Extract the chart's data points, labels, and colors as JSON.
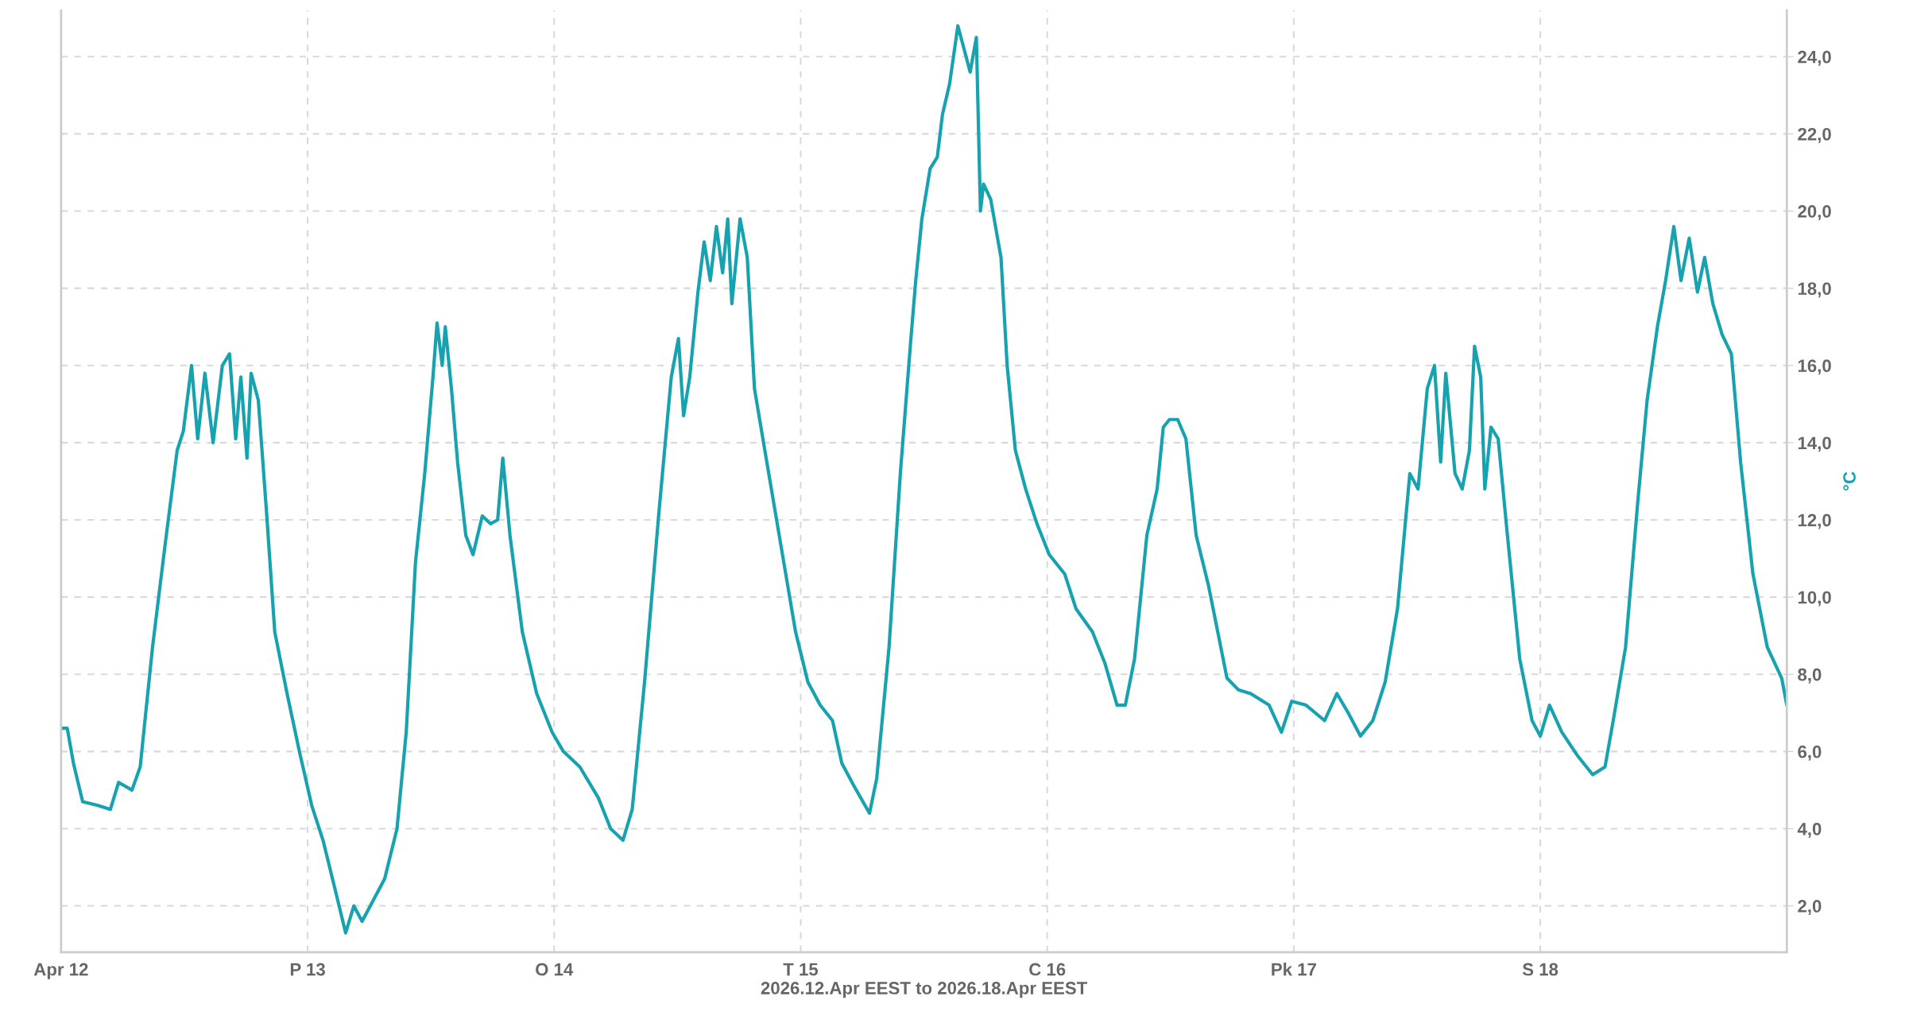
{
  "chart_data": {
    "type": "line",
    "xlabel": "2026.12.Apr EEST to 2026.18.Apr EEST",
    "ylabel": "°C",
    "xlim": [
      "2026-04-12",
      "2026-04-19"
    ],
    "xticks": [
      {
        "value": "2026-04-12",
        "label": "Apr 12"
      },
      {
        "value": "2026-04-13",
        "label": "P 13"
      },
      {
        "value": "2026-04-14",
        "label": "O 14"
      },
      {
        "value": "2026-04-15",
        "label": "T 15"
      },
      {
        "value": "2026-04-16",
        "label": "C 16"
      },
      {
        "value": "2026-04-17",
        "label": "Pk 17"
      },
      {
        "value": "2026-04-18",
        "label": "S 18"
      }
    ],
    "ylim": [
      0.8,
      25.2
    ],
    "yticks": [
      {
        "value": 2,
        "label": "2,0"
      },
      {
        "value": 4,
        "label": "4,0"
      },
      {
        "value": 6,
        "label": "6,0"
      },
      {
        "value": 8,
        "label": "8,0"
      },
      {
        "value": 10,
        "label": "10,0"
      },
      {
        "value": 12,
        "label": "12,0"
      },
      {
        "value": 14,
        "label": "14,0"
      },
      {
        "value": 16,
        "label": "16,0"
      },
      {
        "value": 18,
        "label": "18,0"
      },
      {
        "value": 20,
        "label": "20,0"
      },
      {
        "value": 22,
        "label": "22,0"
      },
      {
        "value": 24,
        "label": "24,0"
      }
    ],
    "grid": true,
    "legend": false,
    "marker": "none",
    "line_style": "solid",
    "series": [
      {
        "color": "#17a2b0",
        "x": [
          "2026-04-12T00:00",
          "2026-04-12T00:36",
          "2026-04-12T01:12",
          "2026-04-12T02:06",
          "2026-04-12T03:36",
          "2026-04-12T04:48",
          "2026-04-12T05:36",
          "2026-04-12T06:54",
          "2026-04-12T07:42",
          "2026-04-12T08:54",
          "2026-04-12T10:06",
          "2026-04-12T11:18",
          "2026-04-12T11:54",
          "2026-04-12T12:42",
          "2026-04-12T13:18",
          "2026-04-12T14:00",
          "2026-04-12T14:48",
          "2026-04-12T15:42",
          "2026-04-12T16:24",
          "2026-04-12T17:00",
          "2026-04-12T17:30",
          "2026-04-12T18:06",
          "2026-04-12T18:30",
          "2026-04-12T19:12",
          "2026-04-12T20:00",
          "2026-04-12T20:48",
          "2026-04-12T22:00",
          "2026-04-12T23:12",
          "2026-04-13T00:24",
          "2026-04-13T01:30",
          "2026-04-13T02:42",
          "2026-04-13T03:42",
          "2026-04-13T04:30",
          "2026-04-13T05:18",
          "2026-04-13T06:18",
          "2026-04-13T07:30",
          "2026-04-13T08:42",
          "2026-04-13T09:36",
          "2026-04-13T10:30",
          "2026-04-13T11:24",
          "2026-04-13T12:12",
          "2026-04-13T12:36",
          "2026-04-13T13:06",
          "2026-04-13T13:24",
          "2026-04-13T14:00",
          "2026-04-13T14:36",
          "2026-04-13T15:24",
          "2026-04-13T16:06",
          "2026-04-13T17:00",
          "2026-04-13T17:48",
          "2026-04-13T18:30",
          "2026-04-13T19:00",
          "2026-04-13T19:42",
          "2026-04-13T20:54",
          "2026-04-13T22:18",
          "2026-04-13T23:48",
          "2026-04-14T00:54",
          "2026-04-14T02:30",
          "2026-04-14T04:18",
          "2026-04-14T05:30",
          "2026-04-14T06:42",
          "2026-04-14T07:36",
          "2026-04-14T08:48",
          "2026-04-14T10:12",
          "2026-04-14T11:24",
          "2026-04-14T12:06",
          "2026-04-14T12:36",
          "2026-04-14T13:12",
          "2026-04-14T14:00",
          "2026-04-14T14:36",
          "2026-04-14T15:12",
          "2026-04-14T15:48",
          "2026-04-14T16:24",
          "2026-04-14T16:54",
          "2026-04-14T17:18",
          "2026-04-14T18:06",
          "2026-04-14T18:48",
          "2026-04-14T19:30",
          "2026-04-14T20:42",
          "2026-04-14T22:06",
          "2026-04-14T23:30",
          "2026-04-15T00:42",
          "2026-04-15T01:54",
          "2026-04-15T03:06",
          "2026-04-15T04:00",
          "2026-04-15T05:12",
          "2026-04-15T06:42",
          "2026-04-15T07:24",
          "2026-04-15T08:36",
          "2026-04-15T09:42",
          "2026-04-15T10:42",
          "2026-04-15T11:12",
          "2026-04-15T11:48",
          "2026-04-15T12:36",
          "2026-04-15T13:18",
          "2026-04-15T13:48",
          "2026-04-15T14:30",
          "2026-04-15T15:18",
          "2026-04-15T15:54",
          "2026-04-15T16:30",
          "2026-04-15T17:06",
          "2026-04-15T17:30",
          "2026-04-15T17:48",
          "2026-04-15T18:30",
          "2026-04-15T19:30",
          "2026-04-15T20:06",
          "2026-04-15T20:54",
          "2026-04-15T21:54",
          "2026-04-15T23:00",
          "2026-04-16T00:12",
          "2026-04-16T01:42",
          "2026-04-16T02:48",
          "2026-04-16T04:24",
          "2026-04-16T05:36",
          "2026-04-16T06:48",
          "2026-04-16T07:36",
          "2026-04-16T08:30",
          "2026-04-16T09:42",
          "2026-04-16T10:42",
          "2026-04-16T11:18",
          "2026-04-16T11:54",
          "2026-04-16T12:42",
          "2026-04-16T13:30",
          "2026-04-16T14:30",
          "2026-04-16T15:42",
          "2026-04-16T16:36",
          "2026-04-16T17:30",
          "2026-04-16T18:36",
          "2026-04-16T19:48",
          "2026-04-16T21:36",
          "2026-04-16T22:48",
          "2026-04-16T23:48",
          "2026-04-17T01:12",
          "2026-04-17T03:00",
          "2026-04-17T04:12",
          "2026-04-17T05:18",
          "2026-04-17T06:30",
          "2026-04-17T07:42",
          "2026-04-17T08:54",
          "2026-04-17T10:06",
          "2026-04-17T11:18",
          "2026-04-17T12:06",
          "2026-04-17T13:00",
          "2026-04-17T13:42",
          "2026-04-17T14:18",
          "2026-04-17T14:48",
          "2026-04-17T15:42",
          "2026-04-17T16:24",
          "2026-04-17T17:06",
          "2026-04-17T17:36",
          "2026-04-17T18:12",
          "2026-04-17T18:36",
          "2026-04-17T19:12",
          "2026-04-17T19:54",
          "2026-04-17T20:48",
          "2026-04-17T22:00",
          "2026-04-17T23:12",
          "2026-04-18T00:00",
          "2026-04-18T00:54",
          "2026-04-18T02:06",
          "2026-04-18T03:36",
          "2026-04-18T05:06",
          "2026-04-18T06:18",
          "2026-04-18T07:06",
          "2026-04-18T08:18",
          "2026-04-18T09:30",
          "2026-04-18T10:24",
          "2026-04-18T11:24",
          "2026-04-18T12:12",
          "2026-04-18T13:00",
          "2026-04-18T13:42",
          "2026-04-18T14:30",
          "2026-04-18T15:18",
          "2026-04-18T16:00",
          "2026-04-18T16:48",
          "2026-04-18T17:42",
          "2026-04-18T18:36",
          "2026-04-18T19:30",
          "2026-04-18T20:42",
          "2026-04-18T22:06",
          "2026-04-18T23:30",
          "2026-04-19T00:00"
        ],
        "values": [
          6.6,
          6.6,
          5.7,
          4.7,
          4.6,
          4.5,
          5.2,
          5.0,
          5.6,
          8.7,
          11.3,
          13.8,
          14.3,
          16.0,
          14.1,
          15.8,
          14.0,
          16.0,
          16.3,
          14.1,
          15.7,
          13.6,
          15.8,
          15.1,
          12.2,
          9.1,
          7.5,
          6.0,
          4.6,
          3.7,
          2.4,
          1.3,
          2.0,
          1.6,
          2.1,
          2.7,
          4.0,
          6.5,
          10.9,
          13.2,
          15.7,
          17.1,
          16.0,
          17.0,
          15.4,
          13.5,
          11.6,
          11.1,
          12.1,
          11.9,
          12.0,
          13.6,
          11.6,
          9.1,
          7.5,
          6.5,
          6.0,
          5.6,
          4.8,
          4.0,
          3.7,
          4.5,
          7.8,
          12.2,
          15.7,
          16.7,
          14.7,
          15.7,
          17.9,
          19.2,
          18.2,
          19.6,
          18.4,
          19.8,
          17.6,
          19.8,
          18.8,
          15.4,
          13.5,
          11.3,
          9.1,
          7.8,
          7.2,
          6.8,
          5.7,
          5.1,
          4.4,
          5.3,
          8.7,
          13.2,
          16.6,
          18.2,
          19.8,
          21.1,
          21.4,
          22.5,
          23.3,
          24.8,
          24.2,
          23.6,
          24.5,
          20.0,
          20.7,
          20.3,
          18.8,
          16.0,
          13.8,
          12.8,
          11.9,
          11.1,
          10.6,
          9.7,
          9.1,
          8.3,
          7.2,
          7.2,
          8.4,
          11.6,
          12.8,
          14.4,
          14.6,
          14.6,
          14.1,
          11.6,
          10.3,
          9.1,
          7.9,
          7.6,
          7.5,
          7.2,
          6.5,
          7.3,
          7.2,
          6.8,
          7.5,
          7.0,
          6.4,
          6.8,
          7.8,
          9.7,
          13.2,
          12.8,
          15.4,
          16.0,
          13.5,
          15.8,
          13.2,
          12.8,
          13.8,
          16.5,
          15.7,
          12.8,
          14.4,
          14.1,
          11.6,
          8.4,
          6.8,
          6.4,
          7.2,
          6.5,
          5.9,
          5.4,
          5.6,
          6.8,
          8.7,
          12.5,
          15.1,
          17.0,
          18.2,
          19.6,
          18.2,
          19.3,
          17.9,
          18.8,
          17.6,
          16.8,
          16.3,
          13.5,
          10.6,
          8.7,
          7.9,
          7.2
        ]
      }
    ]
  }
}
